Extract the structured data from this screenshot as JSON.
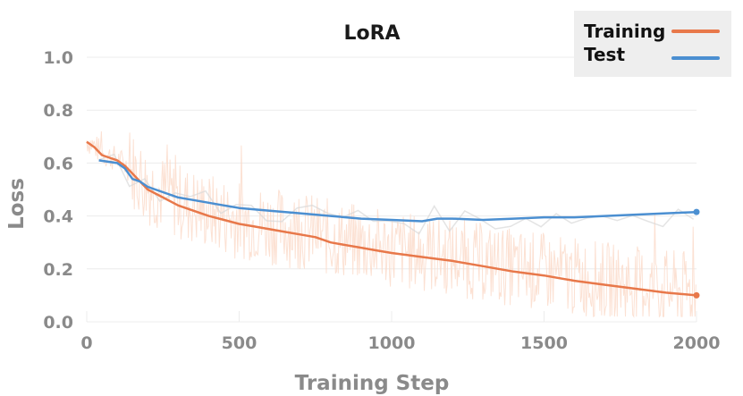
{
  "colors": {
    "training": "#e8784a",
    "training_raw": "#fbd9c8",
    "test": "#4b8fd1",
    "test_raw": "#d9d9d9",
    "legend_bg": "#eeeeee",
    "grid": "#ececec"
  },
  "chart_data": {
    "type": "line",
    "title": "LoRA",
    "xlabel": "Training Step",
    "ylabel": "Loss",
    "xlim": [
      0,
      2000
    ],
    "ylim": [
      0,
      1.0
    ],
    "xticks": [
      0,
      500,
      1000,
      1500,
      2000
    ],
    "yticks": [
      0.0,
      0.2,
      0.4,
      0.6,
      0.8,
      1.0
    ],
    "ytick_labels": [
      "0.0",
      "0.2",
      "0.4",
      "0.6",
      "0.8",
      "1.0"
    ],
    "grid": true,
    "legend_position": "top-right",
    "series": [
      {
        "name": "Training",
        "color_key": "training",
        "x": [
          0,
          25,
          50,
          75,
          100,
          125,
          150,
          175,
          200,
          250,
          300,
          350,
          400,
          450,
          500,
          550,
          600,
          650,
          700,
          750,
          800,
          850,
          900,
          950,
          1000,
          1100,
          1200,
          1300,
          1400,
          1500,
          1600,
          1700,
          1800,
          1900,
          2000
        ],
        "y": [
          0.68,
          0.66,
          0.63,
          0.62,
          0.61,
          0.59,
          0.56,
          0.53,
          0.5,
          0.47,
          0.44,
          0.42,
          0.4,
          0.385,
          0.37,
          0.36,
          0.35,
          0.34,
          0.33,
          0.32,
          0.3,
          0.29,
          0.28,
          0.27,
          0.26,
          0.245,
          0.23,
          0.21,
          0.19,
          0.175,
          0.155,
          0.14,
          0.125,
          0.11,
          0.1
        ]
      },
      {
        "name": "Test",
        "color_key": "test",
        "x": [
          40,
          100,
          125,
          150,
          175,
          200,
          250,
          300,
          350,
          400,
          450,
          500,
          600,
          700,
          800,
          900,
          1000,
          1100,
          1150,
          1200,
          1300,
          1400,
          1500,
          1600,
          1700,
          1800,
          1900,
          2000
        ],
        "y": [
          0.61,
          0.6,
          0.58,
          0.54,
          0.53,
          0.51,
          0.49,
          0.47,
          0.46,
          0.45,
          0.44,
          0.43,
          0.42,
          0.41,
          0.4,
          0.39,
          0.385,
          0.38,
          0.39,
          0.39,
          0.385,
          0.39,
          0.395,
          0.395,
          0.4,
          0.405,
          0.41,
          0.415
        ]
      }
    ]
  }
}
